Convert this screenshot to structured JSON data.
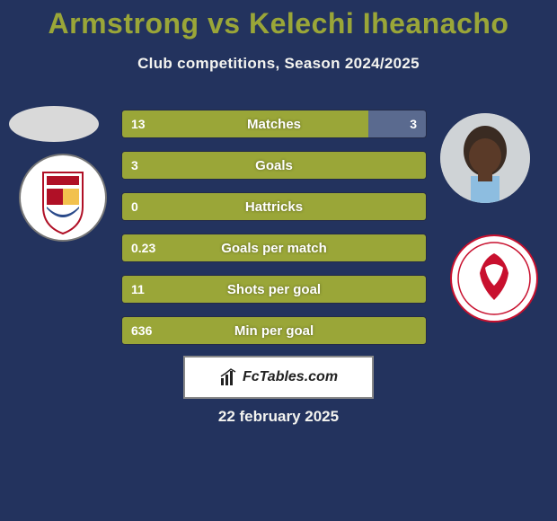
{
  "colors": {
    "background": "#23335e",
    "title": "#9aa638",
    "subtitle": "#f4f4f0",
    "bar_left": "#9aa638",
    "bar_right": "#2f3a5f",
    "bar_right_alt": "#5a6a8f",
    "bar_text": "#ffffff",
    "footer_bg": "#ffffff",
    "footer_border": "#888888",
    "date_text": "#f4f4f0"
  },
  "title": "Armstrong vs Kelechi Iheanacho",
  "subtitle": "Club competitions, Season 2024/2025",
  "stats": [
    {
      "label": "Matches",
      "left_val": "13",
      "right_val": "3",
      "left_pct": 81,
      "right_pct": 19
    },
    {
      "label": "Goals",
      "left_val": "3",
      "right_val": "",
      "left_pct": 100,
      "right_pct": 0
    },
    {
      "label": "Hattricks",
      "left_val": "0",
      "right_val": "",
      "left_pct": 100,
      "right_pct": 0
    },
    {
      "label": "Goals per match",
      "left_val": "0.23",
      "right_val": "",
      "left_pct": 100,
      "right_pct": 0
    },
    {
      "label": "Shots per goal",
      "left_val": "11",
      "right_val": "",
      "left_pct": 100,
      "right_pct": 0
    },
    {
      "label": "Min per goal",
      "left_val": "636",
      "right_val": "",
      "left_pct": 100,
      "right_pct": 0
    }
  ],
  "footer_brand": "FcTables.com",
  "date": "22 february 2025",
  "crests": {
    "left_primary": "#b01026",
    "left_secondary": "#ffffff",
    "right_primary": "#c8102e",
    "right_secondary": "#ffffff"
  }
}
